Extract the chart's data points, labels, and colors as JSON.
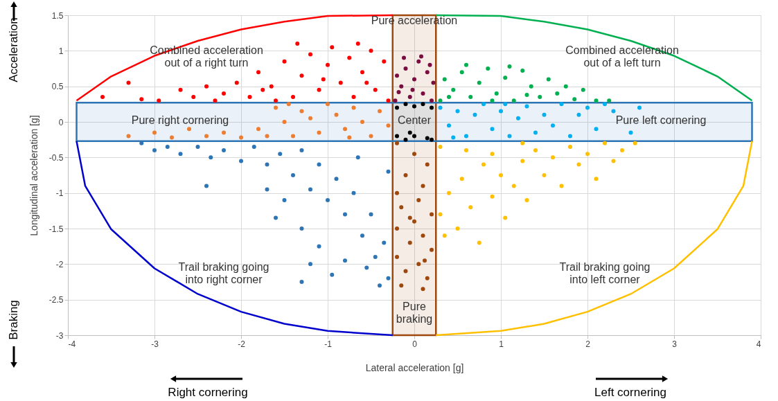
{
  "chart_data": {
    "type": "scatter",
    "xlabel": "Lateral acceleration [g]",
    "ylabel": "Longitudinal acceleration [g]",
    "xlim": [
      -4,
      4
    ],
    "ylim": [
      -3,
      1.5
    ],
    "xticks": [
      -4,
      -3,
      -2,
      -1,
      0,
      1,
      2,
      3,
      4
    ],
    "yticks": [
      -3,
      -2.5,
      -2,
      -1.5,
      -1,
      -0.5,
      0,
      0.5,
      1,
      1.5
    ],
    "grid": true,
    "line_style": "solid",
    "series": [
      {
        "type": "scatter",
        "color": "#ff0000",
        "x": [
          -3.6,
          -3.3,
          -3.15,
          -2.95,
          -2.7,
          -2.55,
          -2.4,
          -2.2,
          -2.05,
          -1.9,
          -1.8,
          -1.65,
          -1.5,
          -1.4,
          -1.3,
          -1.2,
          -1.1,
          -1.0,
          -0.95,
          -0.85,
          -0.75,
          -0.7,
          -0.6,
          -0.5,
          -0.45,
          -0.35,
          -0.3,
          -1.35,
          -0.65,
          -1.6,
          -2.3,
          -1.75,
          -1.05,
          -0.55
        ],
        "values": [
          0.35,
          0.55,
          0.32,
          0.3,
          0.45,
          0.35,
          0.5,
          0.4,
          0.55,
          0.35,
          0.7,
          0.5,
          0.85,
          0.35,
          0.65,
          0.95,
          0.45,
          0.8,
          1.05,
          0.55,
          0.9,
          0.35,
          0.7,
          1.0,
          0.45,
          0.85,
          0.3,
          1.1,
          1.1,
          0.3,
          0.3,
          0.45,
          0.6,
          0.55
        ]
      },
      {
        "type": "scatter",
        "color": "#7b0c40",
        "x": [
          -0.22,
          -0.15,
          -0.1,
          -0.05,
          0.0,
          0.05,
          0.1,
          0.15,
          0.2,
          0.22,
          -0.2,
          -0.12,
          0.08,
          -0.02,
          0.18,
          -0.18
        ],
        "values": [
          0.3,
          0.5,
          0.75,
          0.35,
          0.6,
          0.85,
          0.4,
          0.7,
          0.3,
          0.55,
          0.65,
          0.9,
          0.92,
          0.45,
          0.8,
          0.42
        ]
      },
      {
        "type": "scatter",
        "color": "#00b050",
        "x": [
          0.3,
          0.35,
          0.45,
          0.55,
          0.65,
          0.75,
          0.85,
          0.95,
          1.05,
          1.15,
          1.25,
          1.35,
          1.45,
          1.55,
          1.65,
          1.75,
          1.85,
          1.95,
          2.1,
          2.25,
          0.6,
          1.1,
          0.4,
          1.3,
          0.9
        ],
        "values": [
          0.3,
          0.6,
          0.45,
          0.7,
          0.35,
          0.55,
          0.75,
          0.4,
          0.62,
          0.3,
          0.72,
          0.5,
          0.35,
          0.6,
          0.4,
          0.5,
          0.32,
          0.45,
          0.3,
          0.3,
          0.8,
          0.78,
          0.35,
          0.38,
          0.3
        ]
      },
      {
        "type": "scatter",
        "color": "#ed7d31",
        "x": [
          -3.3,
          -3.0,
          -2.8,
          -2.6,
          -2.4,
          -2.2,
          -2.0,
          -1.8,
          -1.6,
          -1.5,
          -1.4,
          -1.3,
          -1.2,
          -1.1,
          -1.0,
          -0.9,
          -0.8,
          -0.7,
          -0.6,
          -0.5,
          -0.4,
          -0.3,
          -1.45,
          -0.75,
          -1.7
        ],
        "values": [
          -0.2,
          -0.15,
          -0.22,
          -0.1,
          -0.2,
          -0.15,
          -0.22,
          -0.1,
          0.2,
          0.0,
          -0.2,
          0.15,
          0.05,
          -0.15,
          0.25,
          0.1,
          -0.1,
          0.2,
          0.0,
          -0.2,
          0.15,
          -0.05,
          0.25,
          -0.22,
          -0.2
        ]
      },
      {
        "type": "scatter",
        "color": "#000000",
        "x": [
          -0.2,
          -0.1,
          0.0,
          0.1,
          0.2,
          -0.2,
          -0.1,
          0.0,
          0.15,
          0.2,
          -0.05
        ],
        "values": [
          0.2,
          0.25,
          0.22,
          0.25,
          0.2,
          -0.2,
          -0.25,
          -0.2,
          -0.23,
          -0.25,
          -0.15
        ]
      },
      {
        "type": "scatter",
        "color": "#00b0f0",
        "x": [
          0.3,
          0.4,
          0.5,
          0.6,
          0.7,
          0.8,
          0.9,
          1.0,
          1.1,
          1.2,
          1.3,
          1.4,
          1.5,
          1.6,
          1.7,
          1.8,
          1.9,
          2.0,
          2.1,
          2.2,
          2.3,
          2.5,
          2.6,
          0.45,
          1.05
        ],
        "values": [
          0.2,
          -0.05,
          0.15,
          -0.2,
          0.1,
          0.25,
          -0.1,
          0.15,
          -0.2,
          0.05,
          0.22,
          -0.15,
          0.1,
          -0.05,
          0.25,
          -0.2,
          0.1,
          0.2,
          -0.1,
          0.25,
          0.15,
          -0.15,
          0.2,
          -0.22,
          0.25
        ]
      },
      {
        "type": "scatter",
        "color": "#2e75b6",
        "x": [
          -3.15,
          -3.0,
          -2.85,
          -2.7,
          -2.5,
          -2.35,
          -2.2,
          -2.0,
          -1.85,
          -1.7,
          -1.55,
          -1.4,
          -1.3,
          -1.2,
          -1.1,
          -1.0,
          -0.9,
          -0.8,
          -0.7,
          -0.6,
          -0.5,
          -0.45,
          -0.35,
          -0.3,
          -0.4,
          -0.55,
          -1.5,
          -1.7,
          -2.4,
          -1.3,
          -1.1,
          -1.2,
          -0.8,
          -0.95,
          -1.6,
          -0.65,
          -0.3,
          -1.3
        ],
        "values": [
          -0.3,
          -0.4,
          -0.35,
          -0.45,
          -0.35,
          -0.5,
          -0.4,
          -0.55,
          -0.35,
          -0.6,
          -0.45,
          -0.75,
          -0.4,
          -0.95,
          -0.6,
          -1.1,
          -0.8,
          -1.3,
          -1.0,
          -1.6,
          -1.3,
          -1.9,
          -1.7,
          -2.2,
          -2.3,
          -2.05,
          -1.1,
          -0.95,
          -0.9,
          -1.5,
          -1.75,
          -2.0,
          -1.95,
          -2.15,
          -1.35,
          -0.5,
          -0.7,
          -2.25
        ]
      },
      {
        "type": "scatter",
        "color": "#9e480e",
        "x": [
          -0.2,
          0.0,
          0.15,
          -0.1,
          0.1,
          -0.2,
          0.05,
          -0.15,
          0.2,
          0.0,
          -0.2,
          0.1,
          -0.05,
          0.2,
          -0.2,
          0.05,
          -0.1,
          0.15,
          -0.15,
          0.1,
          -0.05,
          0.12
        ],
        "values": [
          -0.3,
          -0.45,
          -0.6,
          -0.75,
          -0.9,
          -1.0,
          -1.1,
          -1.2,
          -1.3,
          -1.4,
          -1.5,
          -1.6,
          -1.7,
          -1.8,
          -1.9,
          -2.0,
          -2.1,
          -2.2,
          -2.3,
          -2.35,
          -1.35,
          -1.95
        ]
      },
      {
        "type": "scatter",
        "color": "#ffc000",
        "x": [
          0.35,
          0.3,
          0.4,
          0.5,
          0.55,
          0.65,
          0.75,
          0.8,
          0.9,
          1.0,
          1.05,
          1.15,
          1.25,
          1.3,
          1.4,
          1.5,
          1.6,
          1.7,
          1.8,
          1.9,
          2.0,
          2.1,
          2.2,
          2.3,
          2.4,
          2.55,
          1.25,
          0.9,
          0.3,
          0.6
        ],
        "values": [
          -1.6,
          -1.3,
          -1.0,
          -1.5,
          -0.8,
          -1.2,
          -1.7,
          -0.6,
          -1.05,
          -0.75,
          -1.35,
          -0.9,
          -0.55,
          -1.1,
          -0.4,
          -0.75,
          -0.5,
          -0.9,
          -0.35,
          -0.6,
          -0.45,
          -0.8,
          -0.3,
          -0.55,
          -0.4,
          -0.3,
          -0.3,
          -0.45,
          -0.35,
          -0.4
        ]
      },
      {
        "type": "line",
        "color": "#ff0000",
        "x": [
          -3.9,
          -3.5,
          -3.0,
          -2.5,
          -2.0,
          -1.5,
          -1.0,
          -0.25
        ],
        "values": [
          0.3,
          0.64,
          0.93,
          1.14,
          1.3,
          1.41,
          1.49,
          1.5
        ]
      },
      {
        "type": "line",
        "color": "#00b050",
        "x": [
          0.25,
          1.0,
          1.5,
          2.0,
          2.5,
          3.0,
          3.5,
          3.9
        ],
        "values": [
          1.5,
          1.49,
          1.41,
          1.3,
          1.14,
          0.93,
          0.64,
          0.3
        ]
      },
      {
        "type": "line",
        "color": "#0000cc",
        "x": [
          -3.9,
          -3.8,
          -3.5,
          -3.0,
          -2.5,
          -2.0,
          -1.5,
          -1.0,
          -0.25
        ],
        "values": [
          -0.27,
          -0.9,
          -1.51,
          -2.06,
          -2.42,
          -2.67,
          -2.84,
          -2.94,
          -3.0
        ]
      },
      {
        "type": "line",
        "color": "#ffc000",
        "x": [
          0.25,
          1.0,
          1.5,
          2.0,
          2.5,
          3.0,
          3.5,
          3.8,
          3.9
        ],
        "values": [
          -3.0,
          -2.94,
          -2.84,
          -2.67,
          -2.42,
          -2.06,
          -1.51,
          -0.9,
          -0.27
        ]
      }
    ],
    "bands": [
      {
        "axis": "x",
        "from": -0.25,
        "to": 0.25,
        "color": "#9e480e"
      },
      {
        "axis": "y",
        "from": -0.27,
        "to": 0.27,
        "color": "#2e75b6"
      }
    ],
    "annotations": [
      "Combined acceleration\nout of a right turn",
      "Pure acceleration",
      "Combined acceleration\nout of a left turn",
      "Pure right cornering",
      "Center",
      "Pure left cornering",
      "Trail braking going\ninto right corner",
      "Trail braking going\ninto left corner",
      "Pure\nbraking",
      "Acceleration",
      "Braking",
      "Right cornering",
      "Left cornering"
    ]
  }
}
